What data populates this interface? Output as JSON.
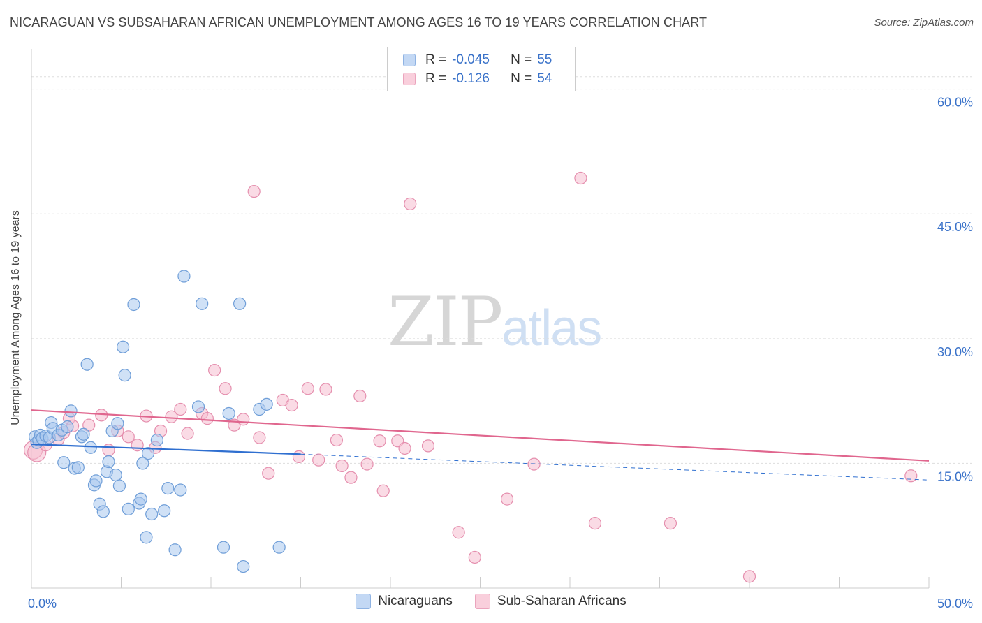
{
  "header": {
    "title": "NICARAGUAN VS SUBSAHARAN AFRICAN UNEMPLOYMENT AMONG AGES 16 TO 19 YEARS CORRELATION CHART",
    "source": "Source: ZipAtlas.com"
  },
  "watermark": {
    "zip": "ZIP",
    "atlas": "atlas"
  },
  "legend": {
    "r_label": "R =",
    "n_label": "N =",
    "series1": {
      "r": "-0.045",
      "n": "55"
    },
    "series2": {
      "r": "-0.126",
      "n": "54"
    }
  },
  "bottom_legend": {
    "series1": "Nicaraguans",
    "series2": "Sub-Saharan Africans"
  },
  "colors": {
    "blue_fill": "#aac8ef",
    "blue_stroke": "#6f9ed8",
    "blue_line": "#2f6fd0",
    "pink_fill": "#f5bdd0",
    "pink_stroke": "#e58fae",
    "pink_line": "#e0668e",
    "grid": "#dddddd",
    "tick_label": "#3a72c9"
  },
  "chart_data": {
    "type": "scatter",
    "title": "NICARAGUAN VS SUBSAHARAN AFRICAN UNEMPLOYMENT AMONG AGES 16 TO 19 YEARS CORRELATION CHART",
    "xlabel": "",
    "ylabel": "Unemployment Among Ages 16 to 19 years",
    "xlim": [
      0,
      50
    ],
    "ylim": [
      0,
      64
    ],
    "x_tick_labels": [
      {
        "value": 0,
        "label": "0.0%"
      },
      {
        "value": 50,
        "label": "50.0%"
      }
    ],
    "y_ticks": [
      {
        "value": 15,
        "label": "15.0%"
      },
      {
        "value": 30,
        "label": "30.0%"
      },
      {
        "value": 45,
        "label": "45.0%"
      },
      {
        "value": 60,
        "label": "60.0%"
      }
    ],
    "grid": true,
    "legend_position": "top-center",
    "series": [
      {
        "name": "Nicaraguans",
        "color": "blue",
        "trend": {
          "x0": 0,
          "y0": 17.3,
          "x1": 15,
          "y1": 16.1,
          "dash_x1": 50,
          "dash_y1": 13.0
        },
        "points": [
          [
            0.2,
            18.2
          ],
          [
            0.3,
            17.5
          ],
          [
            0.4,
            17.8
          ],
          [
            0.5,
            18.4
          ],
          [
            0.6,
            18.0
          ],
          [
            0.8,
            18.3
          ],
          [
            1.0,
            18.1
          ],
          [
            1.1,
            19.9
          ],
          [
            1.2,
            19.2
          ],
          [
            1.5,
            18.4
          ],
          [
            1.7,
            19.0
          ],
          [
            1.8,
            15.1
          ],
          [
            2.0,
            19.4
          ],
          [
            2.2,
            21.3
          ],
          [
            2.4,
            14.4
          ],
          [
            2.6,
            14.5
          ],
          [
            2.8,
            18.2
          ],
          [
            2.9,
            18.5
          ],
          [
            3.1,
            26.9
          ],
          [
            3.3,
            16.9
          ],
          [
            3.5,
            12.4
          ],
          [
            3.6,
            12.9
          ],
          [
            3.8,
            10.1
          ],
          [
            4.0,
            9.2
          ],
          [
            4.2,
            14.0
          ],
          [
            4.3,
            15.2
          ],
          [
            4.5,
            18.9
          ],
          [
            4.7,
            13.6
          ],
          [
            4.8,
            19.8
          ],
          [
            4.9,
            12.3
          ],
          [
            5.1,
            29.0
          ],
          [
            5.2,
            25.6
          ],
          [
            5.4,
            9.5
          ],
          [
            5.7,
            34.1
          ],
          [
            6.0,
            10.2
          ],
          [
            6.1,
            10.7
          ],
          [
            6.2,
            15.0
          ],
          [
            6.4,
            6.1
          ],
          [
            6.5,
            16.2
          ],
          [
            6.7,
            8.9
          ],
          [
            7.0,
            17.8
          ],
          [
            7.4,
            9.3
          ],
          [
            7.6,
            12.0
          ],
          [
            8.0,
            4.6
          ],
          [
            8.3,
            11.8
          ],
          [
            8.5,
            37.5
          ],
          [
            9.3,
            21.8
          ],
          [
            9.5,
            34.2
          ],
          [
            10.7,
            4.9
          ],
          [
            11.0,
            21.0
          ],
          [
            11.6,
            34.2
          ],
          [
            11.8,
            2.6
          ],
          [
            12.7,
            21.5
          ],
          [
            13.1,
            22.1
          ],
          [
            13.8,
            4.9
          ]
        ]
      },
      {
        "name": "Sub-Saharan Africans",
        "color": "pink",
        "trend": {
          "x0": 0,
          "y0": 21.4,
          "x1": 50,
          "y1": 15.3
        },
        "points": [
          [
            0.1,
            16.6
          ],
          [
            0.3,
            16.3
          ],
          [
            0.8,
            17.2
          ],
          [
            1.5,
            17.9
          ],
          [
            1.8,
            18.7
          ],
          [
            2.1,
            20.4
          ],
          [
            2.3,
            19.5
          ],
          [
            3.2,
            19.6
          ],
          [
            3.9,
            20.8
          ],
          [
            4.3,
            16.6
          ],
          [
            4.8,
            18.9
          ],
          [
            5.4,
            18.2
          ],
          [
            5.9,
            17.2
          ],
          [
            6.4,
            20.7
          ],
          [
            6.9,
            16.9
          ],
          [
            7.2,
            18.9
          ],
          [
            7.8,
            20.6
          ],
          [
            8.3,
            21.5
          ],
          [
            8.7,
            18.6
          ],
          [
            9.5,
            21.0
          ],
          [
            9.8,
            20.4
          ],
          [
            10.2,
            26.2
          ],
          [
            10.8,
            24.0
          ],
          [
            11.3,
            19.6
          ],
          [
            11.8,
            20.3
          ],
          [
            12.4,
            47.7
          ],
          [
            12.7,
            18.1
          ],
          [
            13.2,
            13.8
          ],
          [
            14.0,
            22.6
          ],
          [
            14.5,
            22.0
          ],
          [
            14.9,
            15.8
          ],
          [
            15.4,
            24.0
          ],
          [
            16.0,
            15.4
          ],
          [
            16.4,
            23.9
          ],
          [
            17.0,
            17.8
          ],
          [
            17.3,
            14.7
          ],
          [
            17.8,
            13.3
          ],
          [
            18.3,
            23.1
          ],
          [
            18.7,
            14.9
          ],
          [
            19.4,
            17.7
          ],
          [
            19.6,
            11.7
          ],
          [
            20.4,
            17.7
          ],
          [
            20.8,
            16.8
          ],
          [
            21.1,
            46.2
          ],
          [
            22.1,
            17.1
          ],
          [
            23.8,
            6.7
          ],
          [
            24.7,
            3.7
          ],
          [
            26.5,
            10.7
          ],
          [
            28.0,
            14.9
          ],
          [
            30.6,
            49.3
          ],
          [
            31.4,
            7.8
          ],
          [
            35.6,
            7.8
          ],
          [
            40.0,
            1.4
          ],
          [
            49.0,
            13.5
          ]
        ]
      }
    ]
  }
}
